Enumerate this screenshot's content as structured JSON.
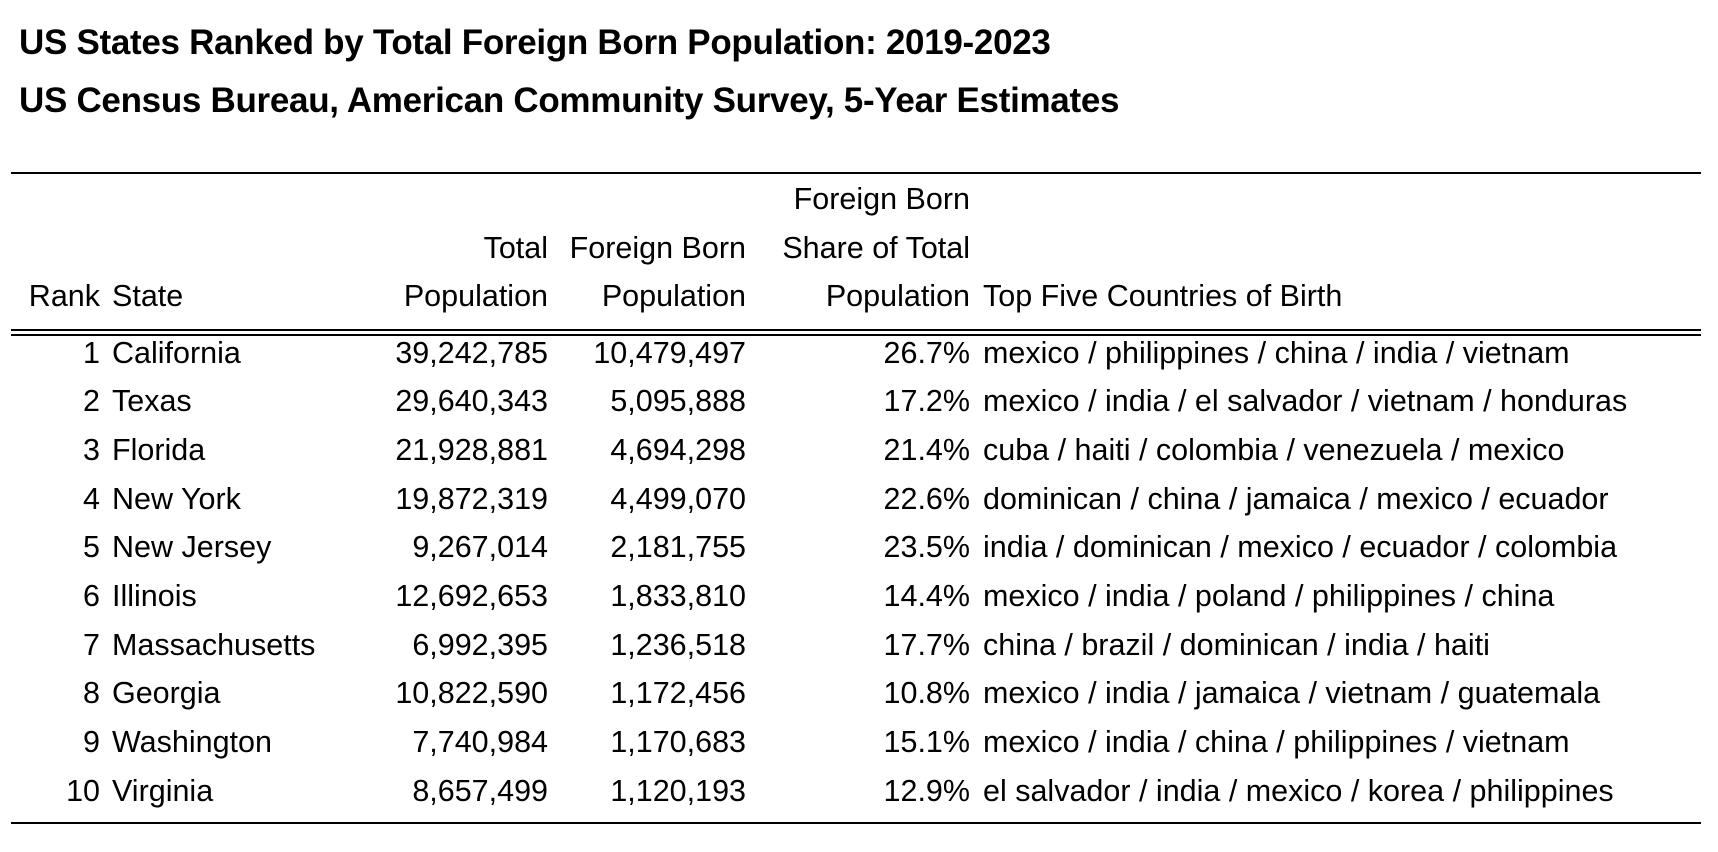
{
  "title": "US States Ranked by Total Foreign Born Population: 2019-2023",
  "subtitle": "US Census Bureau, American Community Survey, 5-Year Estimates",
  "columns": {
    "rank": "Rank",
    "state": "State",
    "total_line1": "Total",
    "total_line2": "Population",
    "fb_line1": "Foreign Born",
    "fb_line2": "Population",
    "share_line1": "Foreign Born",
    "share_line2": "Share of Total",
    "share_line3": "Population",
    "top": "Top Five Countries of Birth"
  },
  "rows": [
    {
      "rank": "1",
      "state": "California",
      "total": "39,242,785",
      "foreign_born": "10,479,497",
      "share": "26.7%",
      "top": "mexico / philippines / china / india / vietnam"
    },
    {
      "rank": "2",
      "state": "Texas",
      "total": "29,640,343",
      "foreign_born": "5,095,888",
      "share": "17.2%",
      "top": "mexico / india / el salvador / vietnam / honduras"
    },
    {
      "rank": "3",
      "state": "Florida",
      "total": "21,928,881",
      "foreign_born": "4,694,298",
      "share": "21.4%",
      "top": "cuba / haiti / colombia / venezuela / mexico"
    },
    {
      "rank": "4",
      "state": "New York",
      "total": "19,872,319",
      "foreign_born": "4,499,070",
      "share": "22.6%",
      "top": "dominican / china / jamaica / mexico / ecuador"
    },
    {
      "rank": "5",
      "state": "New Jersey",
      "total": "9,267,014",
      "foreign_born": "2,181,755",
      "share": "23.5%",
      "top": "india / dominican / mexico / ecuador / colombia"
    },
    {
      "rank": "6",
      "state": "Illinois",
      "total": "12,692,653",
      "foreign_born": "1,833,810",
      "share": "14.4%",
      "top": "mexico / india / poland / philippines / china"
    },
    {
      "rank": "7",
      "state": "Massachusetts",
      "total": "6,992,395",
      "foreign_born": "1,236,518",
      "share": "17.7%",
      "top": "china / brazil / dominican / india / haiti"
    },
    {
      "rank": "8",
      "state": "Georgia",
      "total": "10,822,590",
      "foreign_born": "1,172,456",
      "share": "10.8%",
      "top": "mexico / india / jamaica / vietnam / guatemala"
    },
    {
      "rank": "9",
      "state": "Washington",
      "total": "7,740,984",
      "foreign_born": "1,170,683",
      "share": "15.1%",
      "top": "mexico / india / china / philippines / vietnam"
    },
    {
      "rank": "10",
      "state": "Virginia",
      "total": "8,657,499",
      "foreign_born": "1,120,193",
      "share": "12.9%",
      "top": "el salvador / india / mexico / korea / philippines"
    }
  ]
}
